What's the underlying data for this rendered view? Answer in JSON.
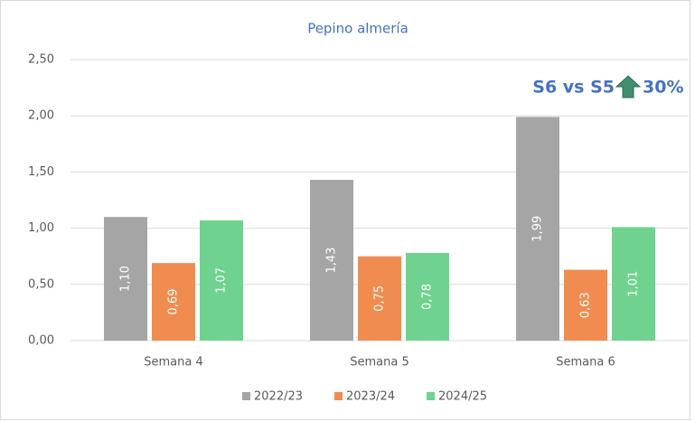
{
  "chart_data": {
    "type": "bar",
    "title": "Pepino almería",
    "categories": [
      "Semana 4",
      "Semana 5",
      "Semana 6"
    ],
    "series": [
      {
        "name": "2022/23",
        "color": "#a5a5a5",
        "values": [
          1.1,
          1.43,
          1.99
        ],
        "value_labels": [
          "1,10",
          "1,43",
          "1,99"
        ]
      },
      {
        "name": "2023/24",
        "color": "#f08c4f",
        "values": [
          0.69,
          0.75,
          0.63
        ],
        "value_labels": [
          "0,69",
          "0,75",
          "0,63"
        ]
      },
      {
        "name": "2024/25",
        "color": "#6fd38f",
        "values": [
          1.07,
          0.78,
          1.01
        ],
        "value_labels": [
          "1,07",
          "0,78",
          "1,01"
        ]
      }
    ],
    "ylim": [
      0,
      2.5
    ],
    "yticks": [
      {
        "value": 0,
        "label": "0,00"
      },
      {
        "value": 0.5,
        "label": "0,50"
      },
      {
        "value": 1,
        "label": "1,00"
      },
      {
        "value": 1.5,
        "label": "1,50"
      },
      {
        "value": 2,
        "label": "2,00"
      },
      {
        "value": 2.5,
        "label": "2,50"
      }
    ],
    "grid": true,
    "legend": "bottom",
    "annotation": {
      "label": "S6 vs S5",
      "change": "30%"
    }
  }
}
